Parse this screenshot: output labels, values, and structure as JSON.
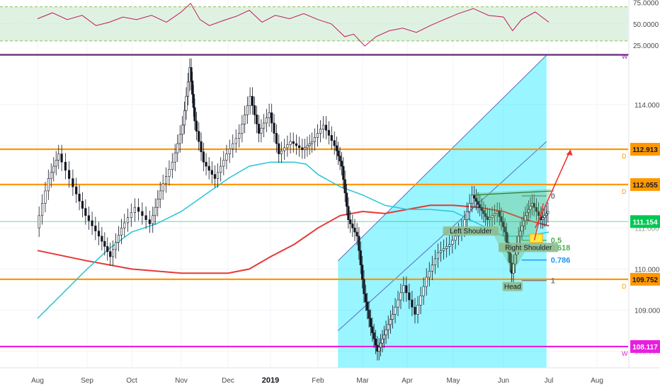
{
  "chart_data": {
    "type": "candlestick",
    "title": "",
    "price_axis": {
      "range": [
        107.6,
        115.2
      ],
      "ticks": [
        "114.000",
        "110.000",
        "109.000"
      ],
      "partial_ticks": [
        "108.000",
        "111.000"
      ]
    },
    "rsi_axis": {
      "range": [
        15,
        78
      ],
      "ticks": [
        "75.0000",
        "50.0000",
        "25.0000"
      ],
      "band": [
        30,
        70
      ]
    },
    "time_axis": {
      "labels": [
        "Aug",
        "Sep",
        "Oct",
        "Nov",
        "Dec",
        "2019",
        "Feb",
        "Mar",
        "Apr",
        "May",
        "Jun",
        "Jul",
        "Aug"
      ],
      "bold": [
        "2019"
      ]
    },
    "levels": [
      {
        "value": 112.913,
        "label": "112.913",
        "color": "#ff9800",
        "letter": "D"
      },
      {
        "value": 112.055,
        "label": "112.055",
        "color": "#ff9800",
        "letter": "D"
      },
      {
        "value": 111.154,
        "label": "111.154",
        "color": "#00c853",
        "letter": ""
      },
      {
        "value": 109.752,
        "label": "109.752",
        "color": "#ff9800",
        "letter": "D"
      },
      {
        "value": 108.117,
        "label": "108.117",
        "color": "#e91ee0",
        "letter": "W"
      }
    ],
    "top_line": {
      "value": 115.2,
      "letter": "W",
      "color": "#9c27b0"
    },
    "fib_levels": [
      {
        "ratio": "0",
        "price": 111.78,
        "color": "#787b86"
      },
      {
        "ratio": "0.5",
        "price": 110.7,
        "color": "#4caf50"
      },
      {
        "ratio": "0.618",
        "price": 110.52,
        "color": "#4caf50"
      },
      {
        "ratio": "0.786",
        "price": 110.22,
        "color": "#2196f3"
      },
      {
        "ratio": "1",
        "price": 109.72,
        "color": "#787b86"
      }
    ],
    "annotations": [
      {
        "text": "Left Shoulder",
        "x": 9.35,
        "price": 110.9
      },
      {
        "text": "Right Shoulder",
        "x": 10.55,
        "price": 110.5
      },
      {
        "text": "Head",
        "x": 10.2,
        "price": 109.55
      }
    ],
    "close_series": [
      [
        0.0,
        111.0
      ],
      [
        0.25,
        112.2
      ],
      [
        0.45,
        112.8
      ],
      [
        0.75,
        112.0
      ],
      [
        1.0,
        111.3
      ],
      [
        1.3,
        110.8
      ],
      [
        1.55,
        110.3
      ],
      [
        1.8,
        111.0
      ],
      [
        2.1,
        111.5
      ],
      [
        2.4,
        111.1
      ],
      [
        2.6,
        111.9
      ],
      [
        2.85,
        112.6
      ],
      [
        3.05,
        113.5
      ],
      [
        3.2,
        114.9
      ],
      [
        3.3,
        113.6
      ],
      [
        3.5,
        112.6
      ],
      [
        3.75,
        112.2
      ],
      [
        4.0,
        112.8
      ],
      [
        4.3,
        113.3
      ],
      [
        4.55,
        114.2
      ],
      [
        4.75,
        113.3
      ],
      [
        5.0,
        113.8
      ],
      [
        5.2,
        112.8
      ],
      [
        5.45,
        113.1
      ],
      [
        5.7,
        112.9
      ],
      [
        5.9,
        113.1
      ],
      [
        6.15,
        113.5
      ],
      [
        6.4,
        113.0
      ],
      [
        6.55,
        112.5
      ],
      [
        6.7,
        111.2
      ],
      [
        6.9,
        110.8
      ],
      [
        7.05,
        109.4
      ],
      [
        7.2,
        108.6
      ],
      [
        7.35,
        108.0
      ],
      [
        7.5,
        108.4
      ],
      [
        7.7,
        108.9
      ],
      [
        7.95,
        109.6
      ],
      [
        8.2,
        108.9
      ],
      [
        8.45,
        109.8
      ],
      [
        8.7,
        110.4
      ],
      [
        8.95,
        110.6
      ],
      [
        9.2,
        111.0
      ],
      [
        9.4,
        111.8
      ],
      [
        9.55,
        111.5
      ],
      [
        9.7,
        111.2
      ],
      [
        9.9,
        111.4
      ],
      [
        10.05,
        110.9
      ],
      [
        10.2,
        109.9
      ],
      [
        10.35,
        110.8
      ],
      [
        10.5,
        111.3
      ],
      [
        10.65,
        111.6
      ],
      [
        10.85,
        111.2
      ],
      [
        11.0,
        111.4
      ]
    ],
    "ma_slow": [
      [
        0.0,
        110.45
      ],
      [
        1.0,
        110.2
      ],
      [
        2.0,
        110.0
      ],
      [
        3.0,
        109.9
      ],
      [
        4.0,
        109.9
      ],
      [
        4.5,
        110.0
      ],
      [
        5.0,
        110.3
      ],
      [
        5.5,
        110.6
      ],
      [
        6.0,
        111.0
      ],
      [
        6.5,
        111.3
      ],
      [
        7.0,
        111.4
      ],
      [
        7.5,
        111.35
      ],
      [
        8.0,
        111.45
      ],
      [
        8.5,
        111.55
      ],
      [
        9.0,
        111.55
      ],
      [
        9.5,
        111.5
      ],
      [
        10.0,
        111.4
      ],
      [
        10.5,
        111.2
      ],
      [
        11.0,
        111.05
      ]
    ],
    "ma_fast": [
      [
        0.0,
        108.8
      ],
      [
        0.5,
        109.4
      ],
      [
        1.0,
        110.0
      ],
      [
        1.5,
        110.5
      ],
      [
        2.0,
        110.9
      ],
      [
        2.5,
        111.1
      ],
      [
        3.0,
        111.4
      ],
      [
        3.5,
        111.8
      ],
      [
        4.0,
        112.2
      ],
      [
        4.5,
        112.5
      ],
      [
        5.0,
        112.6
      ],
      [
        5.5,
        112.6
      ],
      [
        5.75,
        112.55
      ],
      [
        6.0,
        112.3
      ],
      [
        6.5,
        112.0
      ],
      [
        7.0,
        111.8
      ],
      [
        7.5,
        111.55
      ],
      [
        8.0,
        111.45
      ],
      [
        8.5,
        111.45
      ],
      [
        9.0,
        111.4
      ],
      [
        9.5,
        111.1
      ],
      [
        10.0,
        110.8
      ],
      [
        10.5,
        110.8
      ],
      [
        11.0,
        110.9
      ]
    ],
    "rsi_series": [
      [
        0.0,
        56
      ],
      [
        0.3,
        63
      ],
      [
        0.6,
        55
      ],
      [
        0.9,
        60
      ],
      [
        1.2,
        48
      ],
      [
        1.5,
        52
      ],
      [
        1.8,
        58
      ],
      [
        2.1,
        55
      ],
      [
        2.4,
        60
      ],
      [
        2.7,
        52
      ],
      [
        3.0,
        64
      ],
      [
        3.2,
        74
      ],
      [
        3.4,
        55
      ],
      [
        3.6,
        48
      ],
      [
        3.9,
        54
      ],
      [
        4.2,
        59
      ],
      [
        4.5,
        66
      ],
      [
        4.8,
        52
      ],
      [
        5.1,
        60
      ],
      [
        5.4,
        56
      ],
      [
        5.7,
        62
      ],
      [
        6.0,
        55
      ],
      [
        6.3,
        50
      ],
      [
        6.6,
        35
      ],
      [
        6.8,
        38
      ],
      [
        7.05,
        24
      ],
      [
        7.3,
        35
      ],
      [
        7.6,
        42
      ],
      [
        7.9,
        45
      ],
      [
        8.2,
        40
      ],
      [
        8.5,
        48
      ],
      [
        8.8,
        55
      ],
      [
        9.1,
        62
      ],
      [
        9.4,
        68
      ],
      [
        9.7,
        60
      ],
      [
        10.0,
        58
      ],
      [
        10.2,
        42
      ],
      [
        10.4,
        55
      ],
      [
        10.7,
        64
      ],
      [
        11.0,
        52
      ]
    ],
    "channel": {
      "lower": [
        [
          6.45,
          108.5
        ],
        [
          10.95,
          113.1
        ]
      ],
      "upper": [
        [
          6.45,
          110.2
        ],
        [
          10.95,
          115.2
        ]
      ],
      "x_end": 10.95,
      "color": "#00e5ff"
    },
    "projection": [
      [
        10.7,
        111.0
      ],
      [
        10.95,
        111.6
      ],
      [
        11.45,
        112.9
      ]
    ],
    "neckline": [
      [
        9.4,
        111.8
      ],
      [
        11.1,
        111.9
      ]
    ]
  }
}
